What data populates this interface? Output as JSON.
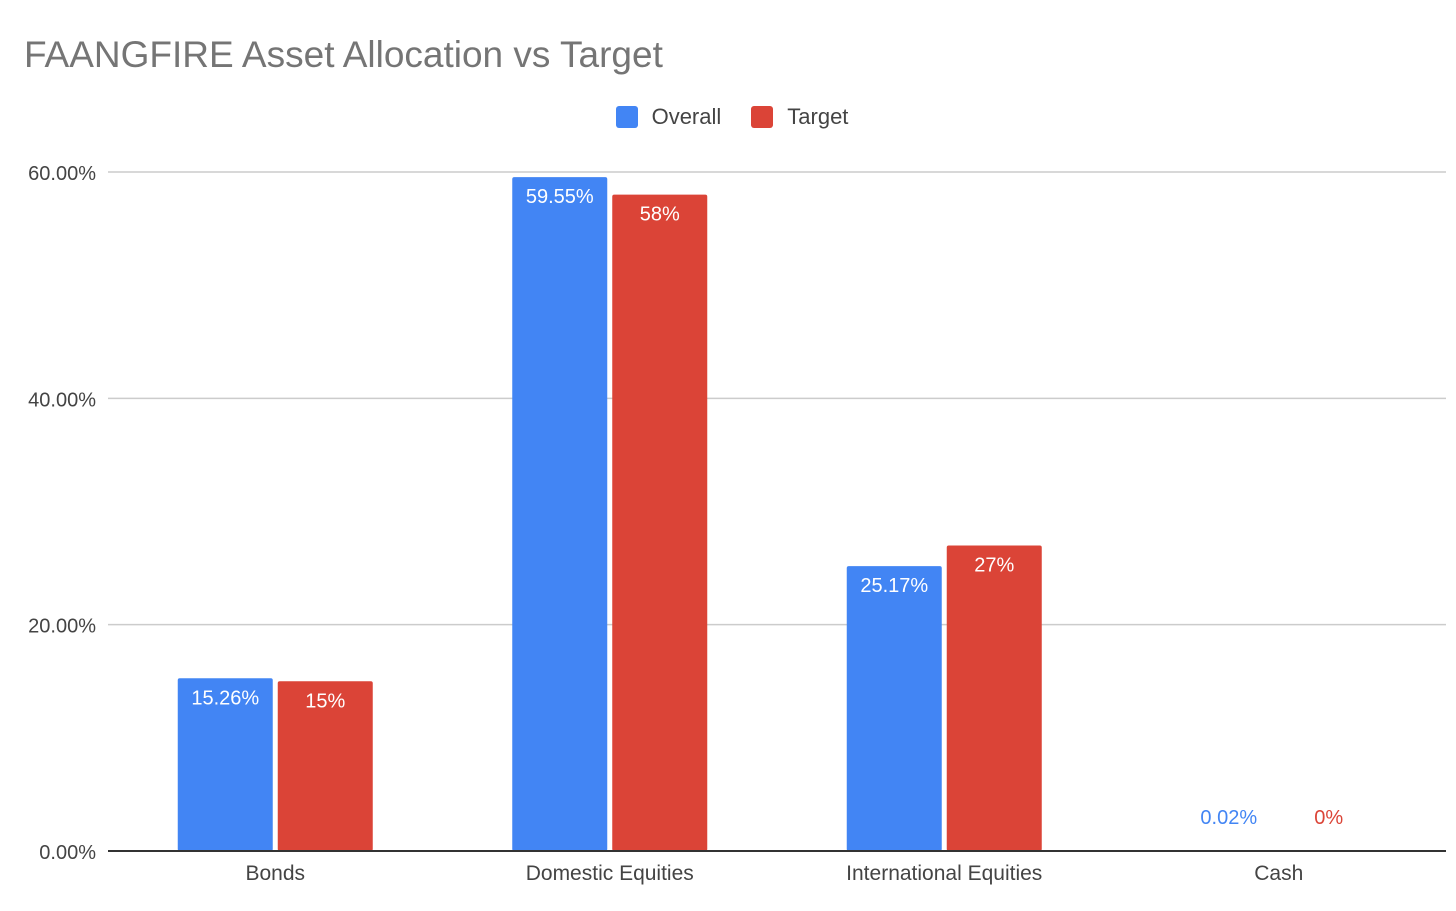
{
  "chart_data": {
    "type": "bar",
    "title": "FAANGFIRE Asset Allocation vs Target",
    "categories": [
      "Bonds",
      "Domestic Equities",
      "International Equities",
      "Cash"
    ],
    "series": [
      {
        "name": "Overall",
        "values": [
          15.26,
          59.55,
          25.17,
          0.02
        ],
        "labels": [
          "15.26%",
          "59.55%",
          "25.17%",
          "0.02%"
        ],
        "color": "#4285f4"
      },
      {
        "name": "Target",
        "values": [
          15,
          58,
          27,
          0
        ],
        "labels": [
          "15%",
          "58%",
          "27%",
          "0%"
        ],
        "color": "#db4437"
      }
    ],
    "ylim": [
      0,
      60
    ],
    "yticks": [
      0,
      20,
      40,
      60
    ],
    "ytick_labels": [
      "0.00%",
      "20.00%",
      "40.00%",
      "60.00%"
    ],
    "legend_position": "top-center",
    "grid": true
  }
}
